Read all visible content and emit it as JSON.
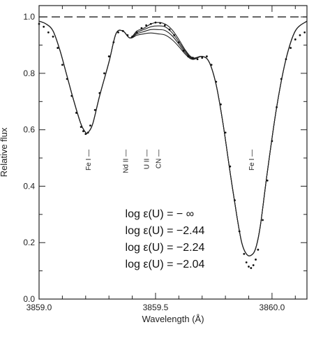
{
  "chart_data": {
    "type": "line",
    "xlabel": "Wavelength (Å)",
    "ylabel": "Relative flux",
    "xlim": [
      3859.0,
      3860.15
    ],
    "ylim": [
      0.0,
      1.04
    ],
    "x_ticks": [
      3859.0,
      3859.5,
      3860.0
    ],
    "x_tick_labels": [
      "3859.0",
      "3859.5",
      "3860.0"
    ],
    "y_ticks": [
      0.0,
      0.2,
      0.4,
      0.6,
      0.8,
      1.0
    ],
    "y_tick_labels": [
      "0.0",
      "0.2",
      "0.4",
      "0.6",
      "0.8",
      "1.0"
    ],
    "reference_line": {
      "y": 1.0,
      "style": "dashed"
    },
    "line_labels": [
      {
        "text": "Fe I",
        "x": 3859.21,
        "y": 0.53
      },
      {
        "text": "Nd II",
        "x": 3859.37,
        "y": 0.53
      },
      {
        "text": "U II",
        "x": 3859.46,
        "y": 0.53
      },
      {
        "text": "CN",
        "x": 3859.51,
        "y": 0.53
      },
      {
        "text": "Fe I",
        "x": 3859.91,
        "y": 0.53
      }
    ],
    "legend": {
      "placement": "lower-center",
      "entries": [
        "log ε(U) = − ∞",
        "log ε(U) = −2.44",
        "log ε(U) = −2.24",
        "log ε(U) = −2.04"
      ]
    },
    "series": [
      {
        "style": "solid",
        "x": [
          3859.0,
          3859.03,
          3859.06,
          3859.09,
          3859.12,
          3859.15,
          3859.18,
          3859.2,
          3859.21,
          3859.23,
          3859.26,
          3859.3,
          3859.33,
          3859.36,
          3859.39,
          3859.42,
          3859.45,
          3859.48,
          3859.51,
          3859.54,
          3859.57,
          3859.6,
          3859.63,
          3859.66,
          3859.7,
          3859.73,
          3859.76,
          3859.79,
          3859.82,
          3859.85,
          3859.87,
          3859.89,
          3859.91,
          3859.93,
          3859.95,
          3859.98,
          3860.02,
          3860.06,
          3860.1,
          3860.15
        ],
        "values": [
          0.985,
          0.975,
          0.95,
          0.88,
          0.79,
          0.7,
          0.62,
          0.59,
          0.59,
          0.62,
          0.72,
          0.84,
          0.94,
          0.95,
          0.925,
          0.95,
          0.96,
          0.975,
          0.98,
          0.975,
          0.955,
          0.92,
          0.88,
          0.855,
          0.86,
          0.84,
          0.76,
          0.62,
          0.45,
          0.29,
          0.2,
          0.16,
          0.155,
          0.18,
          0.26,
          0.45,
          0.68,
          0.85,
          0.95,
          0.985
        ]
      },
      {
        "style": "solid",
        "x": [
          3859.0,
          3859.03,
          3859.06,
          3859.09,
          3859.12,
          3859.15,
          3859.18,
          3859.2,
          3859.21,
          3859.23,
          3859.26,
          3859.3,
          3859.33,
          3859.36,
          3859.39,
          3859.42,
          3859.45,
          3859.48,
          3859.51,
          3859.54,
          3859.57,
          3859.6,
          3859.63,
          3859.66,
          3859.7,
          3859.73,
          3859.76,
          3859.79,
          3859.82,
          3859.85,
          3859.87,
          3859.89,
          3859.91,
          3859.93,
          3859.95,
          3859.98,
          3860.02,
          3860.06,
          3860.1,
          3860.15
        ],
        "values": [
          0.985,
          0.975,
          0.95,
          0.88,
          0.79,
          0.7,
          0.62,
          0.59,
          0.59,
          0.62,
          0.72,
          0.84,
          0.94,
          0.95,
          0.925,
          0.945,
          0.955,
          0.965,
          0.968,
          0.965,
          0.945,
          0.912,
          0.876,
          0.853,
          0.86,
          0.84,
          0.76,
          0.62,
          0.45,
          0.29,
          0.2,
          0.16,
          0.155,
          0.18,
          0.26,
          0.45,
          0.68,
          0.85,
          0.95,
          0.985
        ]
      },
      {
        "style": "solid",
        "x": [
          3859.0,
          3859.03,
          3859.06,
          3859.09,
          3859.12,
          3859.15,
          3859.18,
          3859.2,
          3859.21,
          3859.23,
          3859.26,
          3859.3,
          3859.33,
          3859.36,
          3859.39,
          3859.42,
          3859.45,
          3859.48,
          3859.51,
          3859.54,
          3859.57,
          3859.6,
          3859.63,
          3859.66,
          3859.7,
          3859.73,
          3859.76,
          3859.79,
          3859.82,
          3859.85,
          3859.87,
          3859.89,
          3859.91,
          3859.93,
          3859.95,
          3859.98,
          3860.02,
          3860.06,
          3860.1,
          3860.15
        ],
        "values": [
          0.985,
          0.975,
          0.95,
          0.88,
          0.79,
          0.7,
          0.62,
          0.59,
          0.59,
          0.62,
          0.72,
          0.84,
          0.94,
          0.95,
          0.925,
          0.94,
          0.948,
          0.955,
          0.955,
          0.952,
          0.934,
          0.904,
          0.871,
          0.851,
          0.86,
          0.84,
          0.76,
          0.62,
          0.45,
          0.29,
          0.2,
          0.16,
          0.155,
          0.18,
          0.26,
          0.45,
          0.68,
          0.85,
          0.95,
          0.985
        ]
      },
      {
        "style": "solid",
        "x": [
          3859.0,
          3859.03,
          3859.06,
          3859.09,
          3859.12,
          3859.15,
          3859.18,
          3859.2,
          3859.21,
          3859.23,
          3859.26,
          3859.3,
          3859.33,
          3859.36,
          3859.39,
          3859.42,
          3859.45,
          3859.48,
          3859.51,
          3859.54,
          3859.57,
          3859.6,
          3859.63,
          3859.66,
          3859.7,
          3859.73,
          3859.76,
          3859.79,
          3859.82,
          3859.85,
          3859.87,
          3859.89,
          3859.91,
          3859.93,
          3859.95,
          3859.98,
          3860.02,
          3860.06,
          3860.1,
          3860.15
        ],
        "values": [
          0.985,
          0.975,
          0.95,
          0.88,
          0.79,
          0.7,
          0.62,
          0.59,
          0.59,
          0.62,
          0.72,
          0.84,
          0.94,
          0.95,
          0.925,
          0.935,
          0.94,
          0.943,
          0.94,
          0.936,
          0.92,
          0.895,
          0.866,
          0.849,
          0.86,
          0.84,
          0.76,
          0.62,
          0.45,
          0.29,
          0.2,
          0.16,
          0.155,
          0.18,
          0.26,
          0.45,
          0.68,
          0.85,
          0.95,
          0.985
        ]
      },
      {
        "style": "dots",
        "x": [
          3859.0,
          3859.02,
          3859.04,
          3859.06,
          3859.08,
          3859.1,
          3859.12,
          3859.14,
          3859.16,
          3859.18,
          3859.19,
          3859.2,
          3859.21,
          3859.22,
          3859.24,
          3859.26,
          3859.28,
          3859.3,
          3859.32,
          3859.34,
          3859.36,
          3859.38,
          3859.4,
          3859.42,
          3859.44,
          3859.46,
          3859.48,
          3859.5,
          3859.52,
          3859.54,
          3859.56,
          3859.58,
          3859.6,
          3859.62,
          3859.64,
          3859.66,
          3859.68,
          3859.7,
          3859.72,
          3859.74,
          3859.76,
          3859.78,
          3859.8,
          3859.82,
          3859.84,
          3859.86,
          3859.88,
          3859.89,
          3859.9,
          3859.91,
          3859.92,
          3859.93,
          3859.94,
          3859.96,
          3859.98,
          3860.0,
          3860.02,
          3860.04,
          3860.06,
          3860.08,
          3860.1,
          3860.12,
          3860.14
        ],
        "values": [
          0.975,
          0.965,
          0.945,
          0.93,
          0.89,
          0.83,
          0.78,
          0.72,
          0.66,
          0.61,
          0.595,
          0.585,
          0.59,
          0.615,
          0.67,
          0.73,
          0.8,
          0.86,
          0.91,
          0.945,
          0.95,
          0.935,
          0.93,
          0.945,
          0.96,
          0.97,
          0.975,
          0.98,
          0.978,
          0.97,
          0.955,
          0.935,
          0.91,
          0.88,
          0.86,
          0.855,
          0.85,
          0.855,
          0.86,
          0.83,
          0.77,
          0.69,
          0.59,
          0.47,
          0.35,
          0.24,
          0.16,
          0.13,
          0.115,
          0.11,
          0.12,
          0.14,
          0.175,
          0.28,
          0.42,
          0.56,
          0.68,
          0.78,
          0.85,
          0.89,
          0.92,
          0.935,
          0.945
        ]
      }
    ]
  }
}
